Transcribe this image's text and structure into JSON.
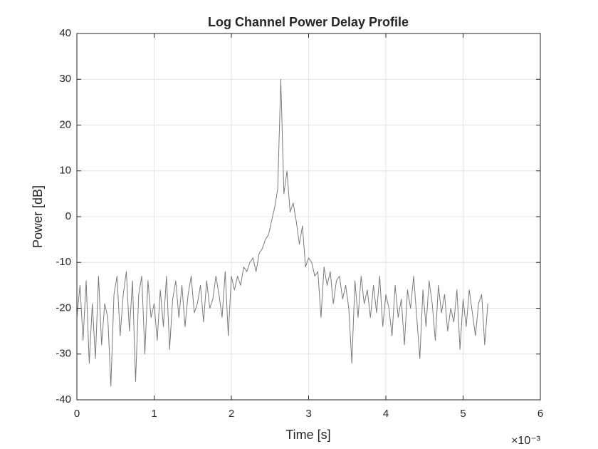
{
  "chart_data": {
    "type": "line",
    "title": "Log Channel Power Delay Profile",
    "x_label": "Time [s]",
    "y_label": "Power [dB]",
    "x_exponent_label": "×10⁻³",
    "x": [
      0,
      0.04,
      0.08,
      0.12,
      0.16,
      0.2,
      0.24,
      0.28,
      0.32,
      0.36,
      0.4,
      0.44,
      0.48,
      0.52,
      0.56,
      0.6,
      0.64,
      0.68,
      0.72,
      0.76,
      0.8,
      0.84,
      0.88,
      0.92,
      0.96,
      1,
      1.04,
      1.08,
      1.12,
      1.16,
      1.2,
      1.24,
      1.28,
      1.32,
      1.36,
      1.4,
      1.44,
      1.48,
      1.52,
      1.56,
      1.6,
      1.64,
      1.68,
      1.72,
      1.76,
      1.8,
      1.84,
      1.88,
      1.92,
      1.96,
      2,
      2.04,
      2.08,
      2.12,
      2.16,
      2.2,
      2.24,
      2.28,
      2.32,
      2.36,
      2.4,
      2.44,
      2.48,
      2.52,
      2.56,
      2.6,
      2.64,
      2.68,
      2.72,
      2.76,
      2.8,
      2.84,
      2.88,
      2.92,
      2.96,
      3,
      3.04,
      3.08,
      3.12,
      3.16,
      3.2,
      3.24,
      3.28,
      3.32,
      3.36,
      3.4,
      3.44,
      3.48,
      3.52,
      3.56,
      3.6,
      3.64,
      3.68,
      3.72,
      3.76,
      3.8,
      3.84,
      3.88,
      3.92,
      3.96,
      4,
      4.04,
      4.08,
      4.12,
      4.16,
      4.2,
      4.24,
      4.28,
      4.32,
      4.36,
      4.4,
      4.44,
      4.48,
      4.52,
      4.56,
      4.6,
      4.64,
      4.68,
      4.72,
      4.76,
      4.8,
      4.84,
      4.88,
      4.92,
      4.96,
      5,
      5.04,
      5.08,
      5.12,
      5.16,
      5.2,
      5.24,
      5.28,
      5.32
    ],
    "values": [
      -22,
      -15,
      -27,
      -14,
      -32,
      -19,
      -31,
      -13,
      -28,
      -19,
      -22,
      -37,
      -17,
      -13,
      -26,
      -17,
      -12,
      -25,
      -14,
      -36,
      -17,
      -13,
      -30,
      -14,
      -22,
      -19,
      -27,
      -16,
      -24,
      -13,
      -29,
      -18,
      -14,
      -22,
      -15,
      -24,
      -17,
      -13,
      -21,
      -19,
      -15,
      -23,
      -14,
      -20,
      -18,
      -13,
      -17,
      -22,
      -12,
      -26,
      -13,
      -16,
      -13,
      -15,
      -11,
      -12,
      -10,
      -9,
      -12,
      -8,
      -7,
      -5,
      -4,
      -1,
      2,
      6,
      30,
      5,
      10,
      1,
      3,
      -1,
      -6,
      -2,
      -11,
      -9,
      -10,
      -13,
      -12,
      -22,
      -11,
      -15,
      -12,
      -19,
      -14,
      -13,
      -18,
      -15,
      -20,
      -32,
      -14,
      -22,
      -13,
      -19,
      -16,
      -22,
      -15,
      -21,
      -13,
      -24,
      -17,
      -20,
      -26,
      -15,
      -22,
      -18,
      -28,
      -16,
      -20,
      -13,
      -22,
      -31,
      -16,
      -24,
      -14,
      -19,
      -27,
      -15,
      -21,
      -17,
      -25,
      -20,
      -23,
      -16,
      -29,
      -18,
      -24,
      -16,
      -21,
      -26,
      -19,
      -17,
      -28,
      -19
    ],
    "color": "#7a7a7a",
    "xlim": [
      0,
      6
    ],
    "xticks": [
      0,
      1,
      2,
      3,
      4,
      5,
      6
    ],
    "ylim": [
      -40,
      40
    ],
    "yticks": [
      -40,
      -30,
      -20,
      -10,
      0,
      10,
      20,
      30,
      40
    ],
    "grid": true
  }
}
